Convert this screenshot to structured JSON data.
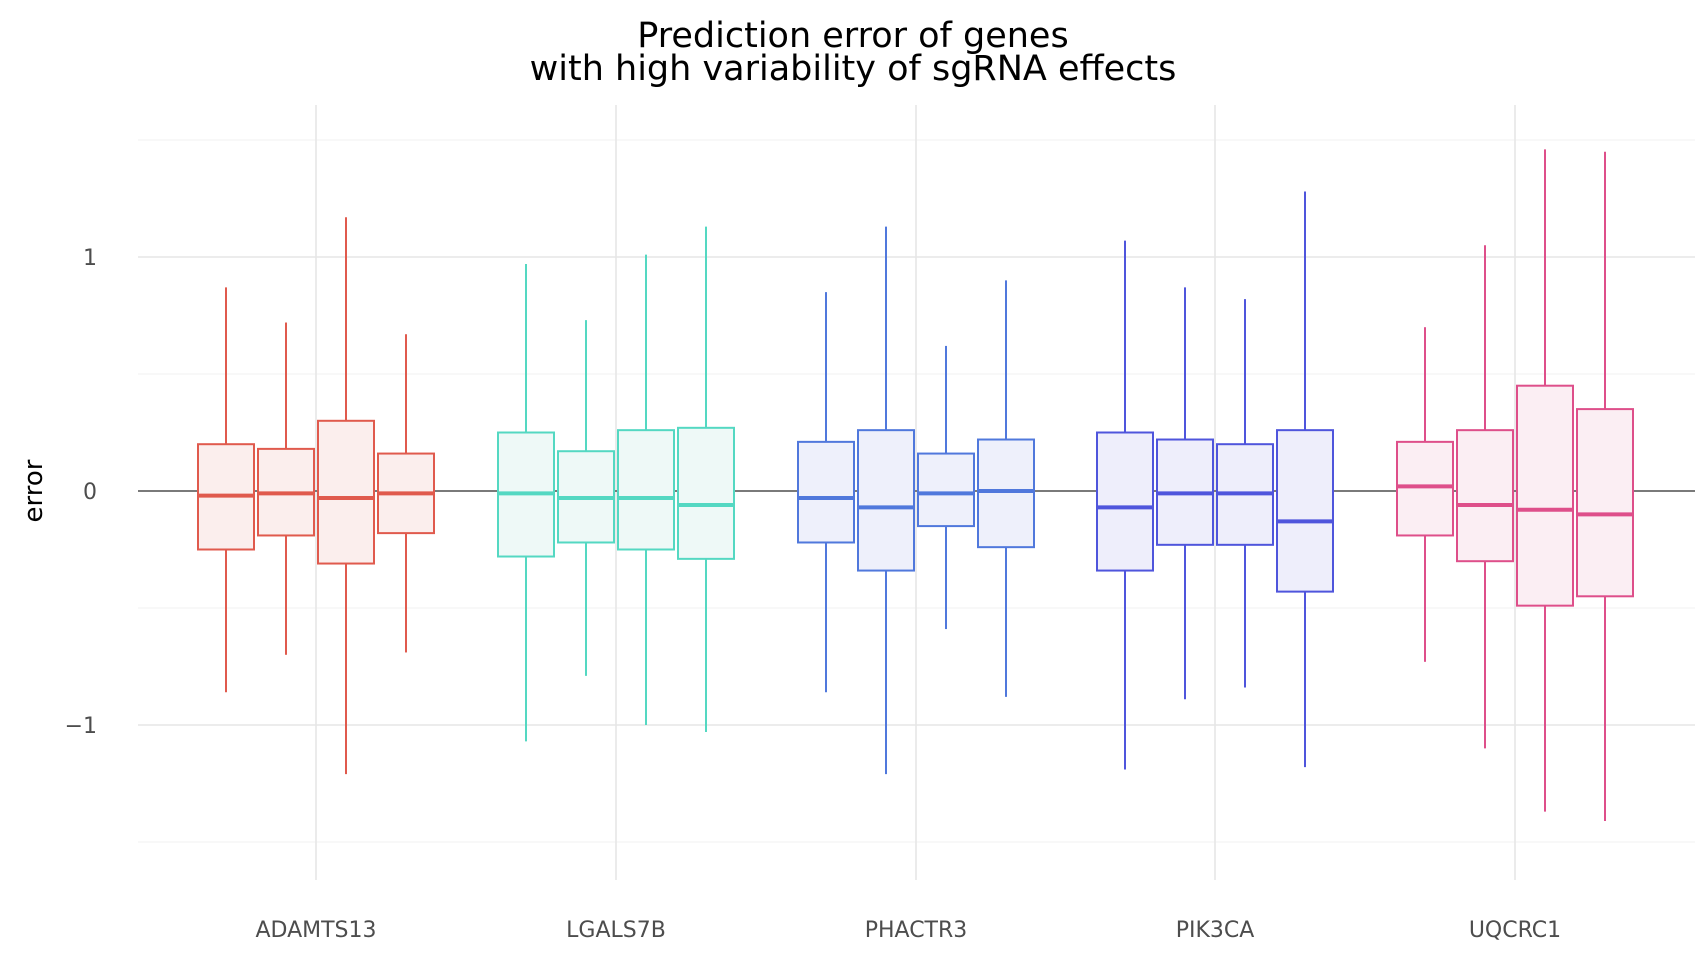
{
  "chart_data": {
    "type": "boxplot",
    "title": [
      "Prediction error of genes",
      "with high variability of sgRNA effects"
    ],
    "xlabel": "",
    "ylabel": "error",
    "ylim": [
      -1.66,
      1.66
    ],
    "y_ticks": [
      -1,
      0,
      1
    ],
    "y_tick_labels": [
      "−1",
      "0",
      "1"
    ],
    "reference_line": 0,
    "grid": true,
    "categories": [
      "ADAMTS13",
      "LGALS7B",
      "PHACTR3",
      "PIK3CA",
      "UQCRC1"
    ],
    "colors": {
      "ADAMTS13": "#e05a4d",
      "LGALS7B": "#54d8c2",
      "PHACTR3": "#5078dc",
      "PIK3CA": "#4f55dc",
      "UQCRC1": "#de4f8a"
    },
    "fills": {
      "ADAMTS13": "#fbeeed",
      "LGALS7B": "#eef9f7",
      "PHACTR3": "#eef0fb",
      "PIK3CA": "#eeeefb",
      "UQCRC1": "#fbeef3"
    },
    "groups": [
      {
        "gene": "ADAMTS13",
        "boxes": [
          {
            "min": -0.86,
            "q1": -0.25,
            "median": -0.02,
            "q3": 0.2,
            "max": 0.87
          },
          {
            "min": -0.7,
            "q1": -0.19,
            "median": -0.01,
            "q3": 0.18,
            "max": 0.72
          },
          {
            "min": -1.21,
            "q1": -0.31,
            "median": -0.03,
            "q3": 0.3,
            "max": 1.17
          },
          {
            "min": -0.69,
            "q1": -0.18,
            "median": -0.01,
            "q3": 0.16,
            "max": 0.67
          }
        ]
      },
      {
        "gene": "LGALS7B",
        "boxes": [
          {
            "min": -1.07,
            "q1": -0.28,
            "median": -0.01,
            "q3": 0.25,
            "max": 0.97
          },
          {
            "min": -0.79,
            "q1": -0.22,
            "median": -0.03,
            "q3": 0.17,
            "max": 0.73
          },
          {
            "min": -1.0,
            "q1": -0.25,
            "median": -0.03,
            "q3": 0.26,
            "max": 1.01
          },
          {
            "min": -1.03,
            "q1": -0.29,
            "median": -0.06,
            "q3": 0.27,
            "max": 1.13
          }
        ]
      },
      {
        "gene": "PHACTR3",
        "boxes": [
          {
            "min": -0.86,
            "q1": -0.22,
            "median": -0.03,
            "q3": 0.21,
            "max": 0.85
          },
          {
            "min": -1.21,
            "q1": -0.34,
            "median": -0.07,
            "q3": 0.26,
            "max": 1.13
          },
          {
            "min": -0.59,
            "q1": -0.15,
            "median": -0.01,
            "q3": 0.16,
            "max": 0.62
          },
          {
            "min": -0.88,
            "q1": -0.24,
            "median": 0.0,
            "q3": 0.22,
            "max": 0.9
          }
        ]
      },
      {
        "gene": "PIK3CA",
        "boxes": [
          {
            "min": -1.19,
            "q1": -0.34,
            "median": -0.07,
            "q3": 0.25,
            "max": 1.07
          },
          {
            "min": -0.89,
            "q1": -0.23,
            "median": -0.01,
            "q3": 0.22,
            "max": 0.87
          },
          {
            "min": -0.84,
            "q1": -0.23,
            "median": -0.01,
            "q3": 0.2,
            "max": 0.82
          },
          {
            "min": -1.18,
            "q1": -0.43,
            "median": -0.13,
            "q3": 0.26,
            "max": 1.28
          }
        ]
      },
      {
        "gene": "UQCRC1",
        "boxes": [
          {
            "min": -0.73,
            "q1": -0.19,
            "median": 0.02,
            "q3": 0.21,
            "max": 0.7
          },
          {
            "min": -1.1,
            "q1": -0.3,
            "median": -0.06,
            "q3": 0.26,
            "max": 1.05
          },
          {
            "min": -1.37,
            "q1": -0.49,
            "median": -0.08,
            "q3": 0.45,
            "max": 1.46
          },
          {
            "min": -1.41,
            "q1": -0.45,
            "median": -0.1,
            "q3": 0.35,
            "max": 1.45
          }
        ]
      }
    ]
  }
}
